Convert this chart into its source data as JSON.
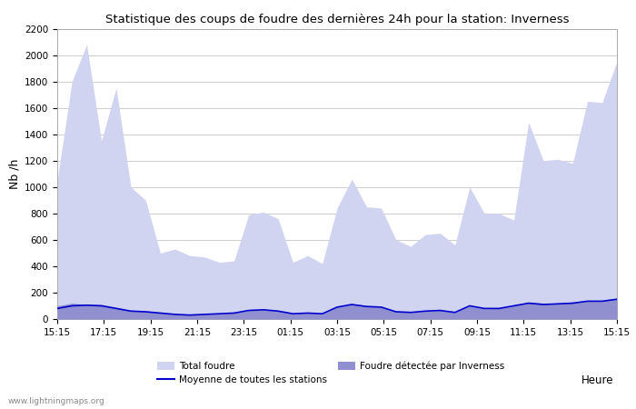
{
  "title": "Statistique des coups de foudre des dernières 24h pour la station: Inverness",
  "ylabel": "Nb /h",
  "heure_label": "Heure",
  "ylim": [
    0,
    2200
  ],
  "yticks": [
    0,
    200,
    400,
    600,
    800,
    1000,
    1200,
    1400,
    1600,
    1800,
    2000,
    2200
  ],
  "xtick_labels": [
    "15:15",
    "17:15",
    "19:15",
    "21:15",
    "23:15",
    "01:15",
    "03:15",
    "05:15",
    "07:15",
    "09:15",
    "11:15",
    "13:15",
    "15:15"
  ],
  "bg_color": "#ffffff",
  "plot_bg_color": "#ffffff",
  "grid_color": "#cccccc",
  "total_foudre_color": "#d0d4f0",
  "inverness_color": "#9090d0",
  "moyenne_color": "#0000cc",
  "watermark": "www.lightningmaps.org",
  "legend_total": "Total foudre",
  "legend_moyenne": "Moyenne de toutes les stations",
  "legend_inverness": "Foudre détectée par Inverness",
  "total_foudre": [
    1050,
    1800,
    2080,
    1350,
    1750,
    1000,
    900,
    500,
    530,
    480,
    470,
    430,
    440,
    790,
    810,
    760,
    430,
    480,
    420,
    840,
    1060,
    850,
    840,
    600,
    550,
    640,
    650,
    560,
    1000,
    800,
    800,
    750,
    1490,
    1200,
    1210,
    1180,
    1650,
    1640,
    1950
  ],
  "inverness": [
    100,
    120,
    110,
    110,
    90,
    60,
    60,
    50,
    40,
    35,
    35,
    40,
    45,
    65,
    70,
    60,
    40,
    45,
    40,
    90,
    110,
    95,
    90,
    55,
    50,
    60,
    65,
    50,
    100,
    80,
    80,
    100,
    130,
    120,
    120,
    130,
    140,
    140,
    155
  ],
  "moyenne": [
    80,
    100,
    105,
    100,
    80,
    60,
    55,
    45,
    35,
    30,
    35,
    40,
    45,
    65,
    70,
    60,
    40,
    45,
    40,
    90,
    110,
    95,
    90,
    55,
    50,
    60,
    65,
    50,
    100,
    80,
    80,
    100,
    120,
    110,
    115,
    120,
    135,
    135,
    150
  ]
}
